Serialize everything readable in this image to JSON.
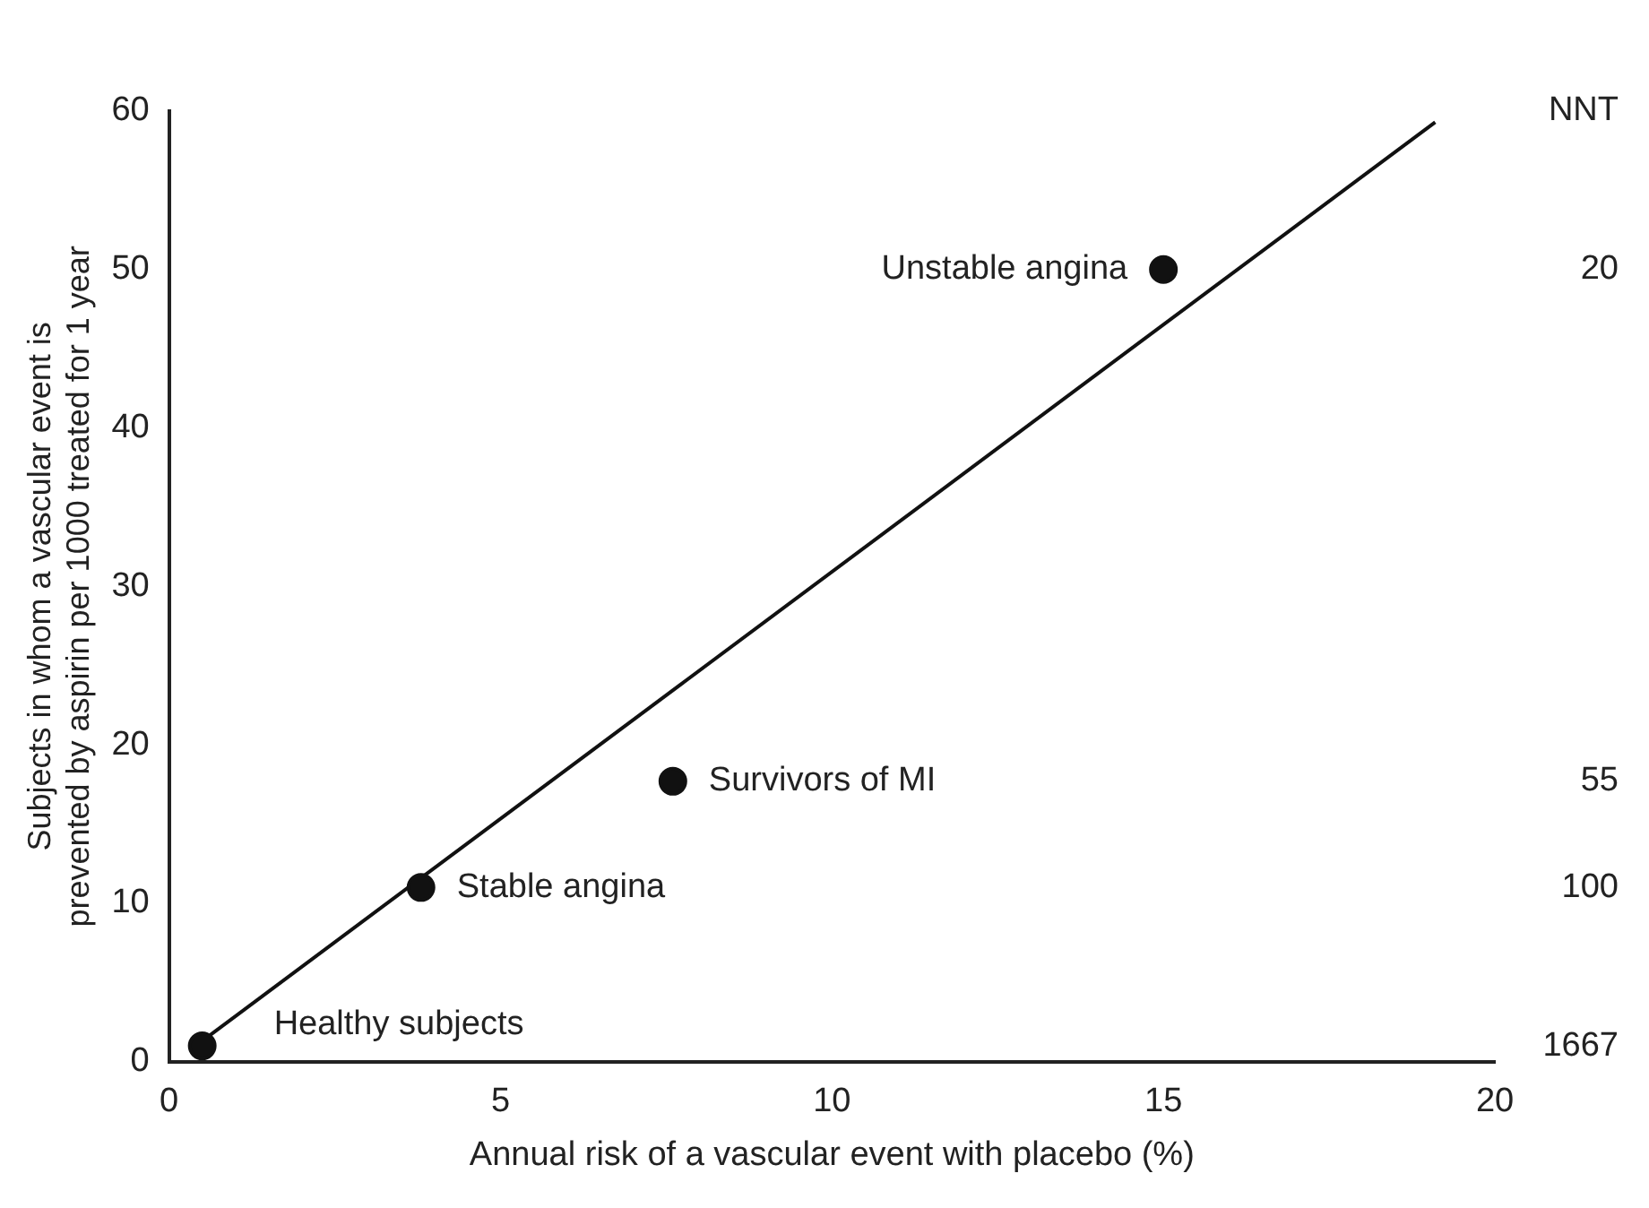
{
  "chart_data": {
    "type": "scatter",
    "xlabel": "Annual risk of a vascular event with placebo (%)",
    "ylabel": "Subjects in whom a vascular event is\nprevented by aspirin per 1000 treated for 1 year",
    "xlim": [
      0,
      20
    ],
    "xticks": [
      0,
      5,
      10,
      15,
      20
    ],
    "ylim": [
      0,
      60
    ],
    "yticks": [
      0,
      10,
      20,
      30,
      40,
      50,
      60
    ],
    "grid": false,
    "legend": false,
    "marker": "circle",
    "series": [
      {
        "color": "#111111",
        "x": [
          0.5,
          3.8,
          7.6,
          15
        ],
        "values": [
          1,
          11,
          17.7,
          50
        ]
      },
      {
        "type": "line",
        "color": "#111111",
        "marker": "none",
        "x": [
          0.4,
          19.1
        ],
        "values": [
          1,
          59.3
        ]
      }
    ],
    "annotations": [
      {
        "text": "Unstable angina",
        "x": 15,
        "y": 50
      },
      {
        "text": "Survivors of MI",
        "x": 7.6,
        "y": 17.7
      },
      {
        "text": "Stable angina",
        "x": 3.8,
        "y": 11
      },
      {
        "text": "Healthy subjects",
        "x": 0.5,
        "y": 1
      },
      "NNT",
      "20",
      "55",
      "100",
      "1667"
    ]
  }
}
